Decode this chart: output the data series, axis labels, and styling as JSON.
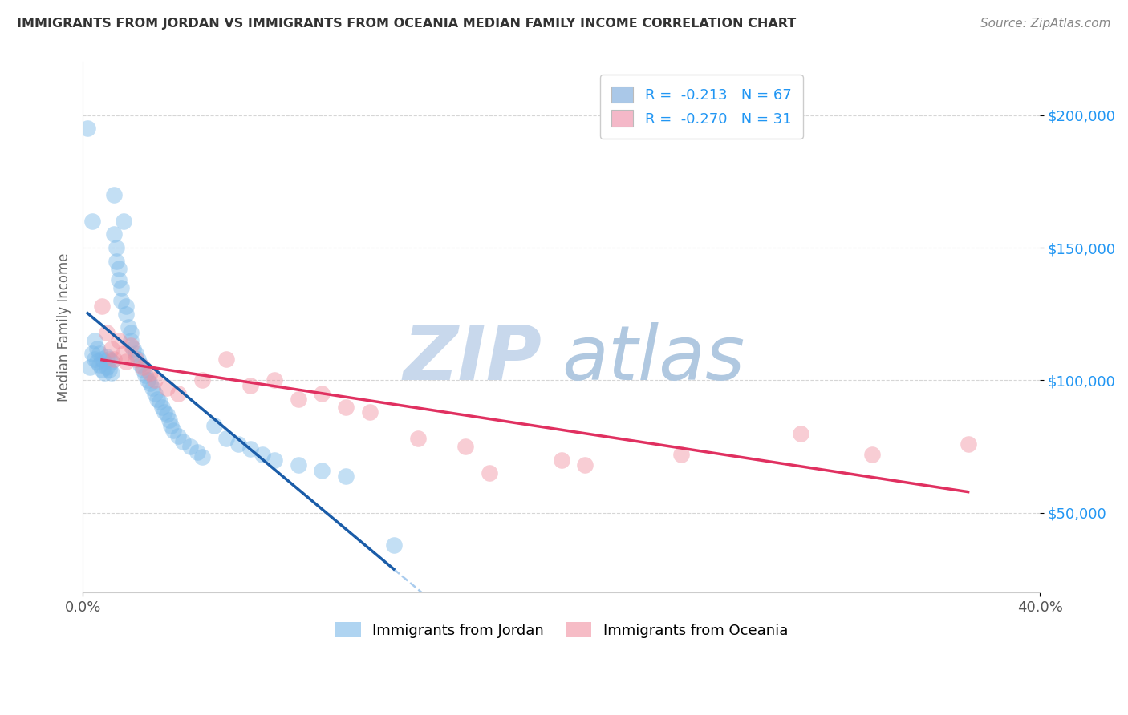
{
  "title": "IMMIGRANTS FROM JORDAN VS IMMIGRANTS FROM OCEANIA MEDIAN FAMILY INCOME CORRELATION CHART",
  "source": "Source: ZipAtlas.com",
  "ylabel": "Median Family Income",
  "xlim": [
    0.0,
    0.4
  ],
  "ylim": [
    20000,
    220000
  ],
  "yticks": [
    50000,
    100000,
    150000,
    200000
  ],
  "ytick_labels": [
    "$50,000",
    "$100,000",
    "$150,000",
    "$200,000"
  ],
  "legend1_label": "R =  -0.213   N = 67",
  "legend2_label": "R =  -0.270   N = 31",
  "legend1_color": "#aac8e8",
  "legend2_color": "#f4b8c8",
  "jordan_color": "#7ab8e8",
  "oceania_color": "#f090a0",
  "jordan_line_color": "#1a5ca8",
  "oceania_line_color": "#e03060",
  "dashed_line_color": "#aaccee",
  "watermark_zip": "ZIP",
  "watermark_atlas": "atlas",
  "watermark_color_zip": "#c8d8e8",
  "watermark_color_atlas": "#b8cce0",
  "jordan_R": -0.213,
  "jordan_N": 67,
  "oceania_R": -0.27,
  "oceania_N": 31,
  "jordan_points_x": [
    0.002,
    0.003,
    0.004,
    0.004,
    0.005,
    0.005,
    0.006,
    0.006,
    0.007,
    0.007,
    0.008,
    0.008,
    0.009,
    0.009,
    0.01,
    0.01,
    0.011,
    0.011,
    0.012,
    0.012,
    0.013,
    0.013,
    0.014,
    0.014,
    0.015,
    0.015,
    0.016,
    0.016,
    0.017,
    0.018,
    0.018,
    0.019,
    0.02,
    0.02,
    0.021,
    0.022,
    0.023,
    0.024,
    0.025,
    0.026,
    0.027,
    0.028,
    0.029,
    0.03,
    0.031,
    0.032,
    0.033,
    0.034,
    0.035,
    0.036,
    0.037,
    0.038,
    0.04,
    0.042,
    0.045,
    0.048,
    0.05,
    0.055,
    0.06,
    0.065,
    0.07,
    0.075,
    0.08,
    0.09,
    0.1,
    0.11,
    0.13
  ],
  "jordan_points_y": [
    195000,
    105000,
    110000,
    160000,
    108000,
    115000,
    107000,
    112000,
    106000,
    110000,
    104000,
    108000,
    103000,
    107000,
    105000,
    109000,
    104000,
    108000,
    103000,
    107000,
    170000,
    155000,
    150000,
    145000,
    142000,
    138000,
    135000,
    130000,
    160000,
    125000,
    128000,
    120000,
    118000,
    115000,
    112000,
    110000,
    108000,
    106000,
    104000,
    102000,
    100000,
    99000,
    97000,
    95000,
    93000,
    92000,
    90000,
    88000,
    87000,
    85000,
    83000,
    81000,
    79000,
    77000,
    75000,
    73000,
    71000,
    83000,
    78000,
    76000,
    74000,
    72000,
    70000,
    68000,
    66000,
    64000,
    38000
  ],
  "oceania_points_x": [
    0.008,
    0.01,
    0.012,
    0.013,
    0.015,
    0.017,
    0.018,
    0.02,
    0.022,
    0.025,
    0.028,
    0.03,
    0.035,
    0.04,
    0.05,
    0.06,
    0.07,
    0.08,
    0.09,
    0.1,
    0.11,
    0.12,
    0.14,
    0.16,
    0.17,
    0.2,
    0.21,
    0.25,
    0.3,
    0.33,
    0.37
  ],
  "oceania_points_y": [
    128000,
    118000,
    112000,
    108000,
    115000,
    110000,
    107000,
    113000,
    108000,
    105000,
    103000,
    100000,
    97000,
    95000,
    100000,
    108000,
    98000,
    100000,
    93000,
    95000,
    90000,
    88000,
    78000,
    75000,
    65000,
    70000,
    68000,
    72000,
    80000,
    72000,
    76000
  ]
}
